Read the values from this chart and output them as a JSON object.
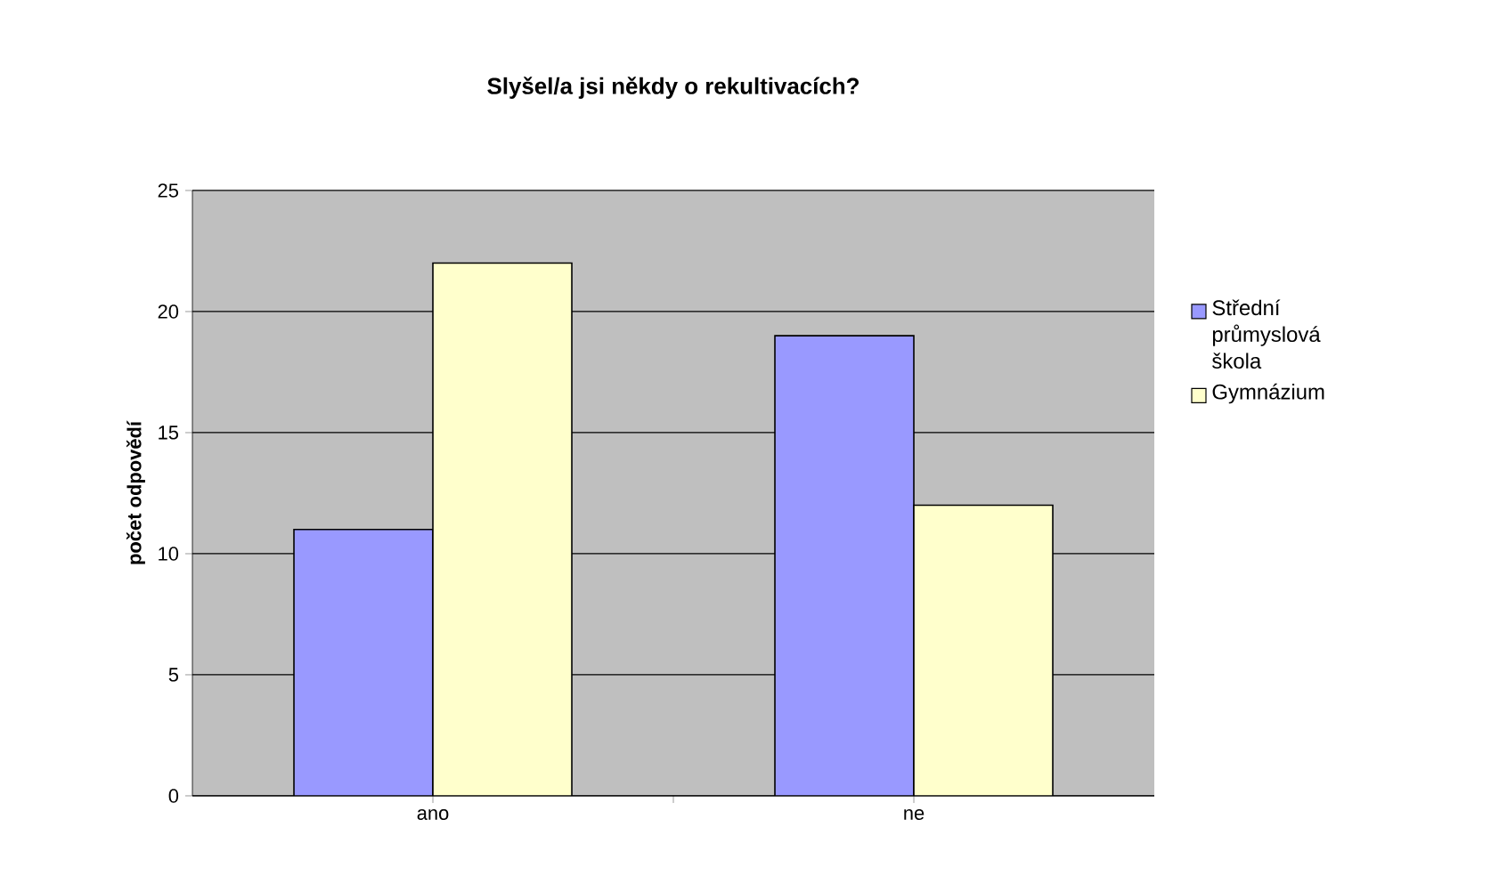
{
  "chart_data": {
    "type": "bar",
    "title": "Slyšel/a jsi někdy o rekultivacích?",
    "ylabel": "počet odpovědí",
    "categories": [
      "ano",
      "ne"
    ],
    "series": [
      {
        "name": "Střední průmyslová škola",
        "color": "#9999ff",
        "values": [
          11,
          19
        ]
      },
      {
        "name": "Gymnázium",
        "color": "#ffffcc",
        "values": [
          22,
          12
        ]
      }
    ],
    "ylim": [
      0,
      25
    ],
    "yticks": [
      0,
      5,
      10,
      15,
      20,
      25
    ],
    "grid": "y",
    "legend": "right"
  }
}
